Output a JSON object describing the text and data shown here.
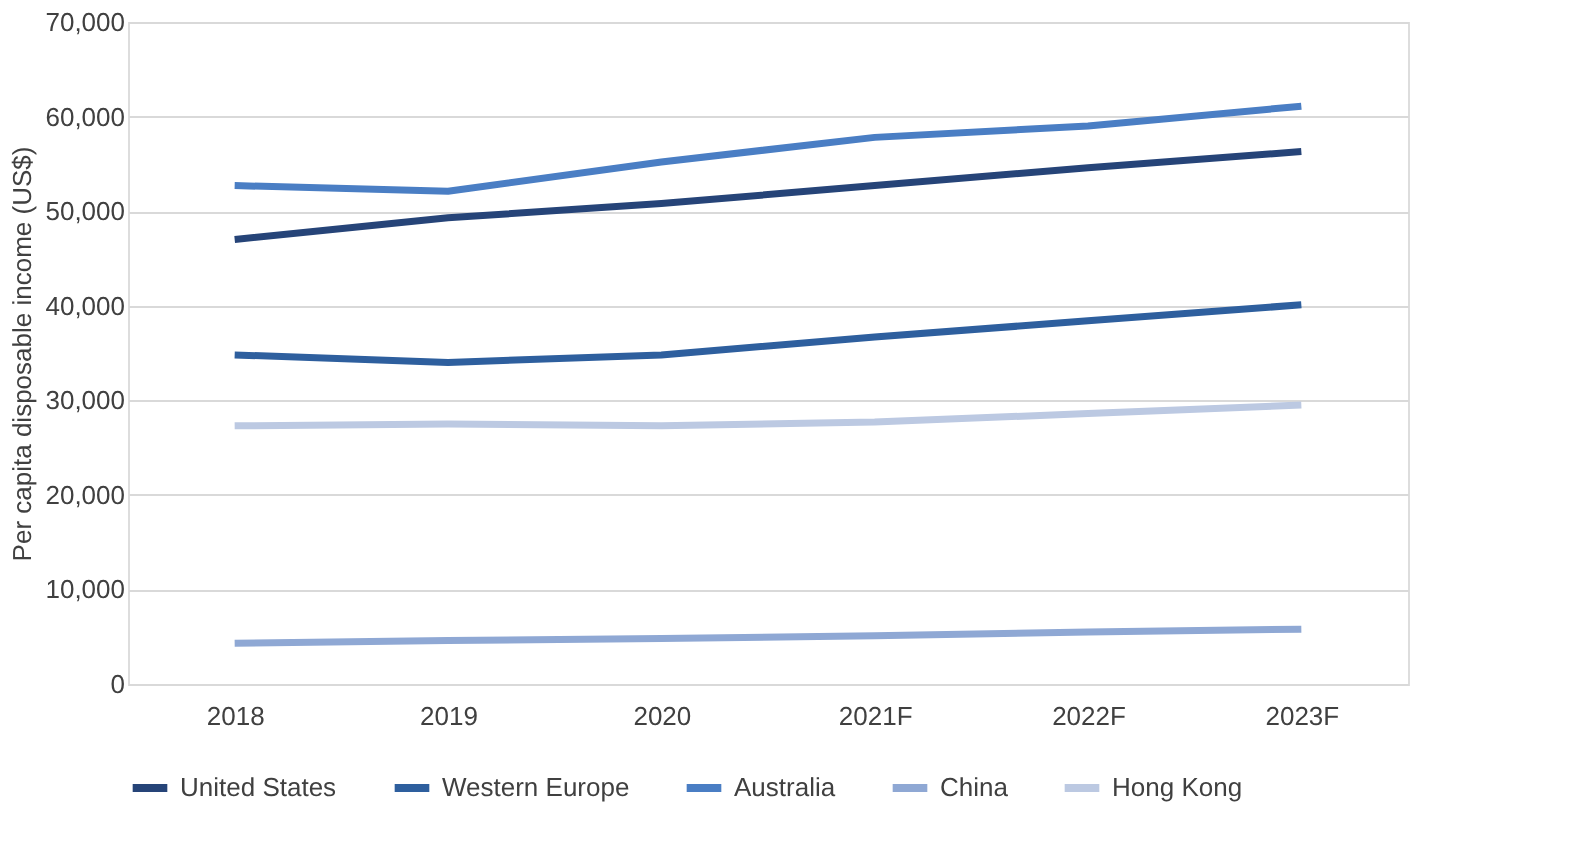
{
  "chart_data": {
    "type": "line",
    "ylabel": "Per capita disposable income (US$)",
    "categories": [
      "2018",
      "2019",
      "2020",
      "2021F",
      "2022F",
      "2023F"
    ],
    "series": [
      {
        "name": "United States",
        "color": "#264478",
        "values": [
          47000,
          49300,
          50800,
          52700,
          54600,
          56300
        ]
      },
      {
        "name": "Western Europe",
        "color": "#2e5f9e",
        "values": [
          34800,
          34000,
          34800,
          36700,
          38400,
          40100
        ]
      },
      {
        "name": "Australia",
        "color": "#4a7ec4",
        "values": [
          52700,
          52100,
          55200,
          57800,
          59000,
          61100
        ]
      },
      {
        "name": "China",
        "color": "#8fa8d4",
        "values": [
          4300,
          4600,
          4800,
          5100,
          5500,
          5800
        ]
      },
      {
        "name": "Hong Kong",
        "color": "#bcc9e2",
        "values": [
          27300,
          27500,
          27300,
          27700,
          28600,
          29500
        ]
      }
    ],
    "ylim": [
      0,
      70000
    ],
    "yticks": [
      0,
      {
        "value": 10000,
        "label": "10,000"
      },
      {
        "value": 20000,
        "label": "20,000"
      },
      {
        "value": 30000,
        "label": "30,000"
      },
      {
        "value": 40000,
        "label": "40,000"
      },
      {
        "value": 50000,
        "label": "50,000"
      },
      {
        "value": 60000,
        "label": "60,000"
      },
      {
        "value": 70000,
        "label": "70,000"
      }
    ],
    "grid": "y",
    "legend": "bottom",
    "marker": "none",
    "line_style": "solid"
  }
}
